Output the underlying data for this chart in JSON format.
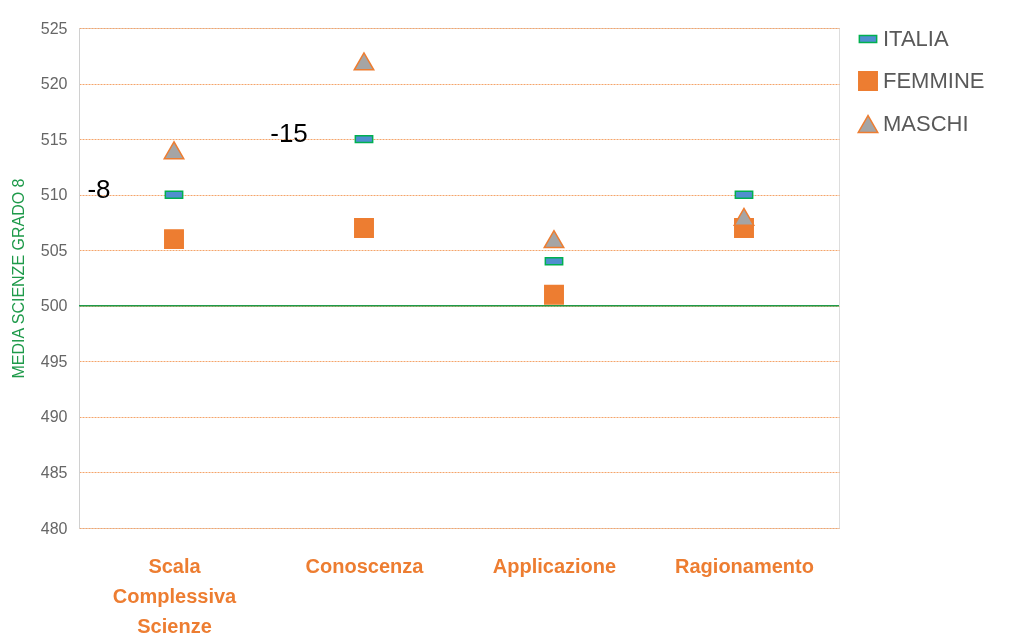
{
  "chart_data": {
    "type": "scatter",
    "ylabel": "MEDIA SCIENZE GRADO 8",
    "categories": [
      "Scala Complessiva Scienze",
      "Conoscenza",
      "Applicazione",
      "Ragionamento"
    ],
    "series": [
      {
        "name": "ITALIA",
        "color": "#4f8fcf",
        "values": [
          510,
          515,
          504,
          510
        ]
      },
      {
        "name": "FEMMINE",
        "color": "#ed7d31",
        "marker": "square",
        "values": [
          506,
          507,
          501,
          507
        ]
      },
      {
        "name": "MASCHI",
        "color": "#a5a5a5",
        "marker": "triangle",
        "values": [
          514,
          522,
          506,
          508
        ]
      }
    ],
    "ylim": [
      480,
      525
    ],
    "yticks": [
      480,
      485,
      490,
      495,
      500,
      505,
      510,
      515,
      520,
      525
    ],
    "grid": "y",
    "legend": "right",
    "ref_lines": [
      {
        "axis": "y",
        "value": 500,
        "color": "#1e9a4a"
      }
    ],
    "annotations": [
      {
        "text": "-8",
        "x": "Scala Complessiva Scienze",
        "y": 510
      },
      {
        "text": "-15",
        "x": "Conoscenza",
        "y": 515
      }
    ]
  }
}
